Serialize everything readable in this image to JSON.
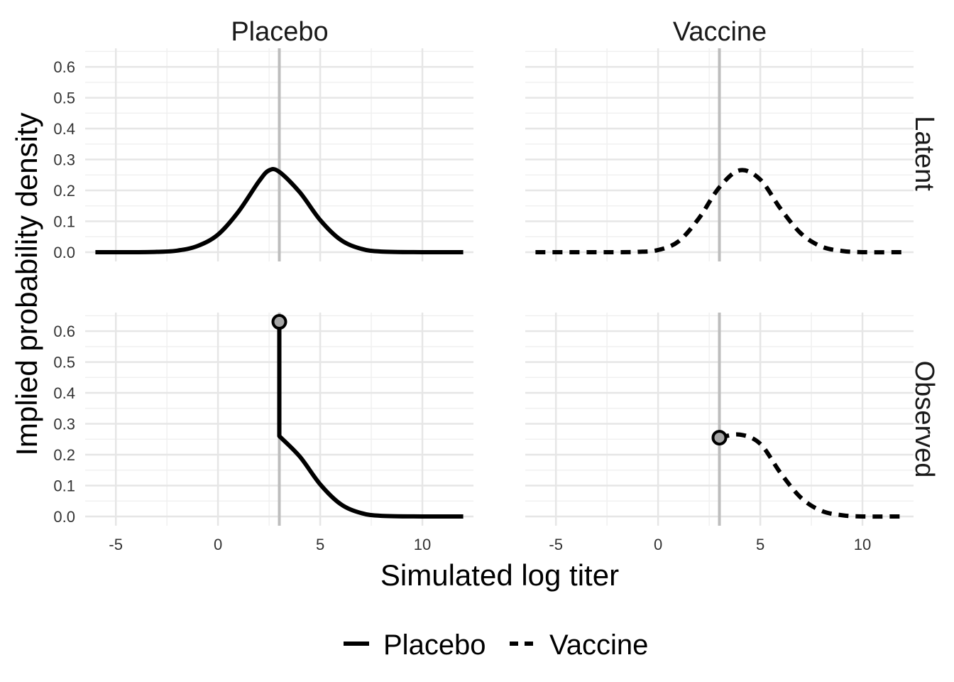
{
  "chart_data": {
    "type": "line",
    "xlabel": "Simulated log titer",
    "ylabel": "Implied probability density",
    "xlim": [
      -6.5,
      12.5
    ],
    "ylim": [
      -0.03,
      0.66
    ],
    "x_ticks": [
      "-5",
      "0",
      "5",
      "10"
    ],
    "y_ticks": [
      "0.0",
      "0.1",
      "0.2",
      "0.3",
      "0.4",
      "0.5",
      "0.6"
    ],
    "grid": true,
    "legend_position": "bottom",
    "column_labels": [
      "Placebo",
      "Vaccine"
    ],
    "row_labels": [
      "Latent",
      "Observed"
    ],
    "threshold_x": 3,
    "series": [
      {
        "name": "Placebo",
        "line_style": "solid"
      },
      {
        "name": "Vaccine",
        "line_style": "dashed"
      }
    ],
    "panels": [
      {
        "column": "Placebo",
        "row": "Latent",
        "x": [
          -6,
          -4,
          -3,
          -2,
          -1,
          0,
          1,
          2,
          2.5,
          3,
          4,
          5,
          6,
          7,
          8,
          10,
          12
        ],
        "y": [
          0.0,
          0.0,
          0.001,
          0.005,
          0.02,
          0.057,
          0.131,
          0.229,
          0.265,
          0.26,
          0.194,
          0.104,
          0.04,
          0.011,
          0.002,
          0.0,
          0.0
        ]
      },
      {
        "column": "Vaccine",
        "row": "Latent",
        "x": [
          -6,
          -2,
          -1,
          0,
          1,
          2,
          3,
          4,
          5,
          6,
          7,
          8,
          9,
          10,
          12
        ],
        "y": [
          0.0,
          0.0,
          0.001,
          0.007,
          0.035,
          0.11,
          0.21,
          0.265,
          0.235,
          0.14,
          0.06,
          0.018,
          0.004,
          0.0,
          0.0
        ]
      },
      {
        "column": "Placebo",
        "row": "Observed",
        "point": {
          "x": 3,
          "y": 0.63
        },
        "x": [
          3,
          3,
          4,
          5,
          6,
          7,
          8,
          10,
          12
        ],
        "y": [
          0.63,
          0.26,
          0.194,
          0.104,
          0.04,
          0.011,
          0.002,
          0.0,
          0.0
        ]
      },
      {
        "column": "Vaccine",
        "row": "Observed",
        "point": {
          "x": 3,
          "y": 0.255
        },
        "x": [
          3,
          4,
          5,
          6,
          7,
          8,
          9,
          10,
          12
        ],
        "y": [
          0.255,
          0.265,
          0.235,
          0.14,
          0.06,
          0.018,
          0.004,
          0.0,
          0.0
        ]
      }
    ]
  }
}
